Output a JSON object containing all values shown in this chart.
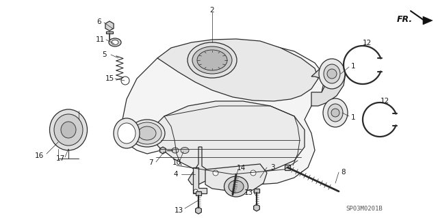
{
  "bg_color": "#ffffff",
  "watermark": "SP03M0201B",
  "fr_label": "FR.",
  "fig_width": 6.4,
  "fig_height": 3.19,
  "dpi": 100,
  "line_color": "#2a2a2a",
  "text_color": "#1a1a1a",
  "font_size": 7.5
}
